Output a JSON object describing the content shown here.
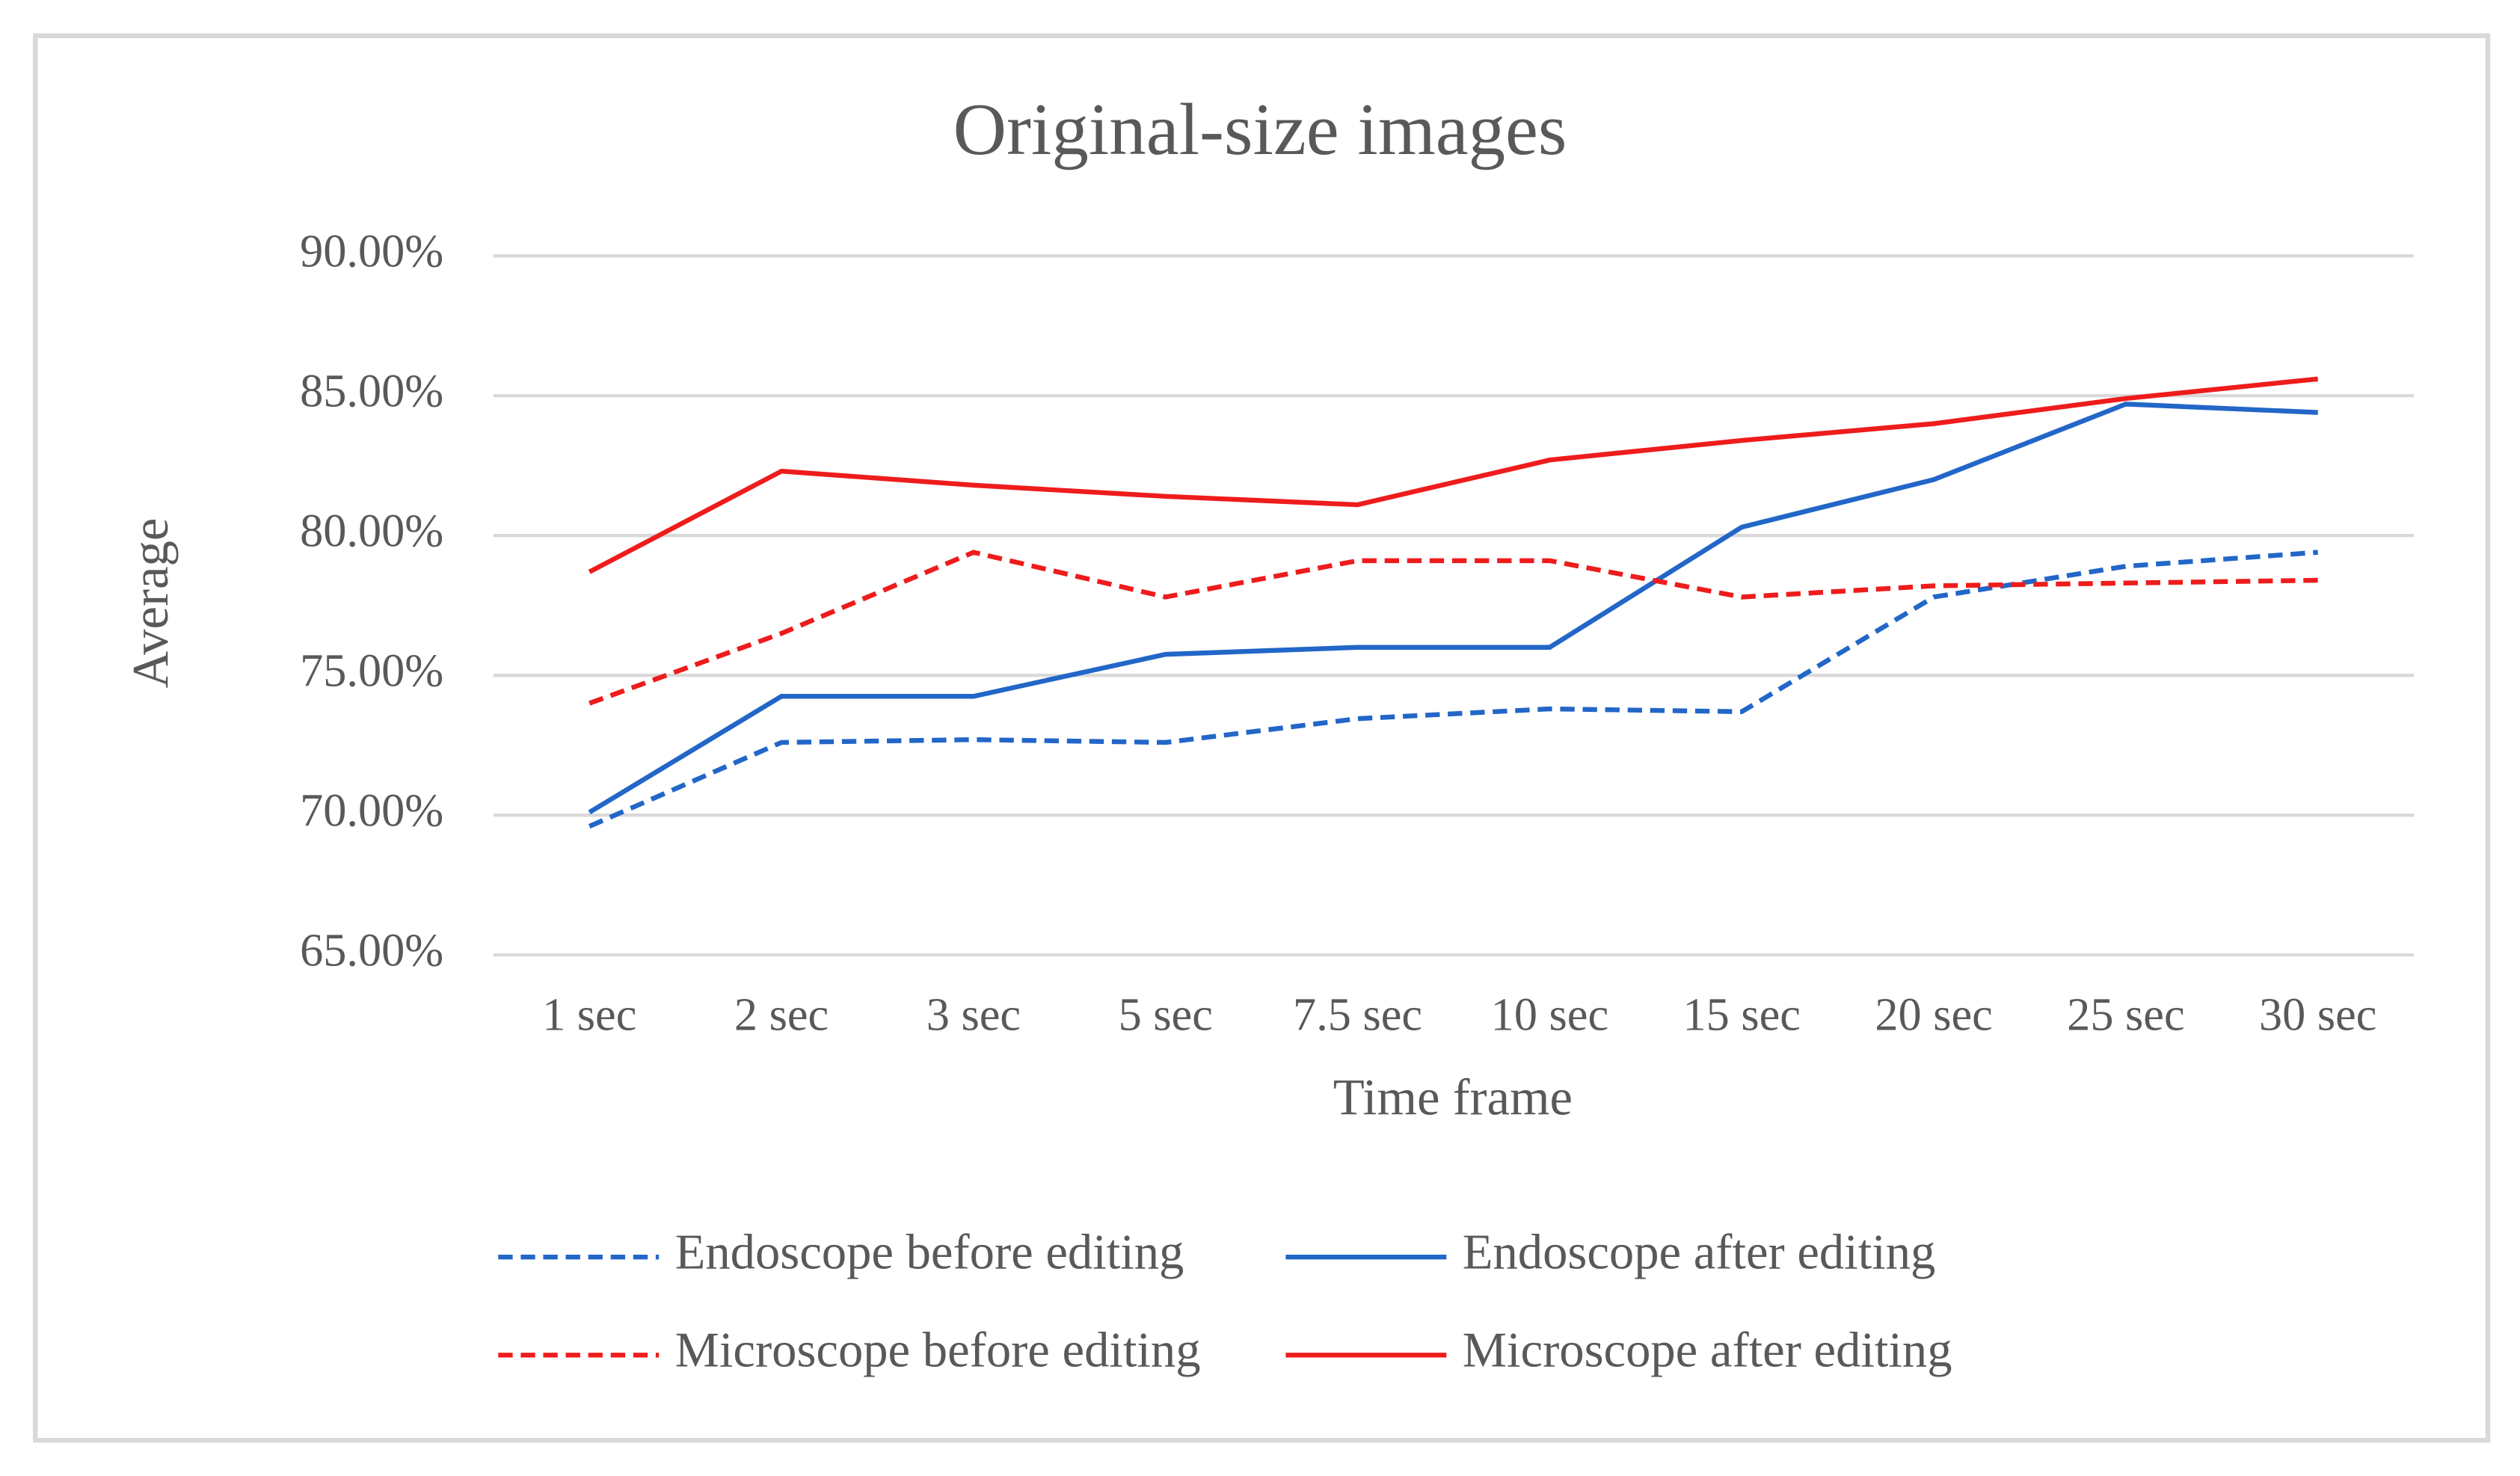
{
  "chart_data": {
    "type": "line",
    "title": "Original-size images",
    "x_label": "Time frame",
    "y_label": "Average",
    "categories": [
      "1 sec",
      "2 sec",
      "3 sec",
      "5 sec",
      "7.5 sec",
      "10 sec",
      "15 sec",
      "20 sec",
      "25 sec",
      "30 sec"
    ],
    "series": [
      {
        "name": "Endoscope before editing",
        "color": "#2266c8",
        "style": "dashed",
        "values": [
          69.6,
          72.6,
          72.7,
          72.6,
          73.45,
          73.8,
          73.7,
          77.8,
          78.9,
          79.4
        ]
      },
      {
        "name": "Endoscope after editing",
        "color": "#2266c8",
        "style": "solid",
        "values": [
          70.1,
          74.25,
          74.25,
          75.75,
          76.0,
          76.0,
          80.3,
          82.0,
          84.7,
          84.4
        ]
      },
      {
        "name": "Microscope before editing",
        "color": "#ee1c1c",
        "style": "dashed",
        "values": [
          74.0,
          76.5,
          79.4,
          77.8,
          79.1,
          79.1,
          77.8,
          78.2,
          78.3,
          78.4
        ]
      },
      {
        "name": "Microscope after editing",
        "color": "#ee1c1c",
        "style": "solid",
        "values": [
          78.7,
          82.3,
          81.8,
          81.4,
          81.1,
          82.7,
          83.4,
          84.0,
          84.9,
          85.6
        ]
      }
    ],
    "ylim": [
      65,
      90
    ],
    "yticks": [
      {
        "value": 65,
        "label": "65.00%"
      },
      {
        "value": 70,
        "label": "70.00%"
      },
      {
        "value": 75,
        "label": "75.00%"
      },
      {
        "value": 80,
        "label": "80.00%"
      },
      {
        "value": 85,
        "label": "85.00%"
      },
      {
        "value": 90,
        "label": "90.00%"
      }
    ],
    "grid": true,
    "legend": "bottom"
  }
}
